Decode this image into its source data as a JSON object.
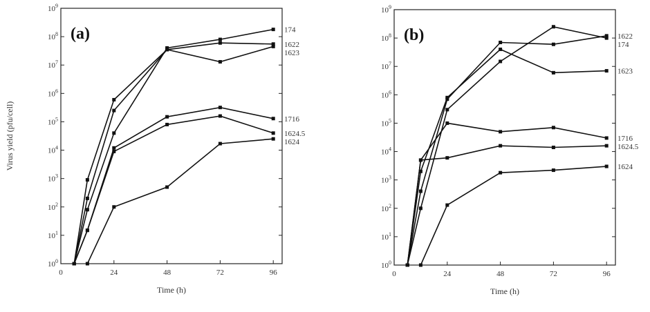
{
  "chart_data": [
    {
      "type": "line",
      "panel_label": "(a)",
      "xlabel": "Time (h)",
      "ylabel": "Virus yield (pfu/cell)",
      "x_ticks": [
        "0",
        "24",
        "48",
        "72",
        "96"
      ],
      "y_ticks": [
        "10^0",
        "10^1",
        "10^2",
        "10^3",
        "10^4",
        "10^5",
        "10^6",
        "10^7",
        "10^8",
        "10^9"
      ],
      "xlim": [
        0,
        100
      ],
      "ylim": [
        1,
        1000000000
      ],
      "y_scale": "log",
      "series": [
        {
          "name": "174",
          "x": [
            6,
            12,
            24,
            48,
            72,
            96
          ],
          "y": [
            1,
            80,
            40000,
            40000000,
            80000000,
            180000000
          ]
        },
        {
          "name": "1622",
          "x": [
            6,
            12,
            24,
            48,
            72,
            96
          ],
          "y": [
            1,
            200,
            250000,
            35000000,
            60000000,
            55000000
          ]
        },
        {
          "name": "1623",
          "x": [
            6,
            12,
            24,
            48,
            72,
            96
          ],
          "y": [
            1,
            900,
            600000,
            35000000,
            13000000,
            45000000
          ]
        },
        {
          "name": "1716",
          "x": [
            6,
            12,
            24,
            48,
            72,
            96
          ],
          "y": [
            1,
            15,
            12000,
            150000,
            320000,
            130000
          ]
        },
        {
          "name": "1624.5",
          "x": [
            6,
            12,
            24,
            48,
            72,
            96
          ],
          "y": [
            1,
            15,
            9000,
            80000,
            160000,
            40000
          ]
        },
        {
          "name": "1624",
          "x": [
            12,
            24,
            48,
            72,
            96
          ],
          "y": [
            1,
            100,
            500,
            17000,
            25000
          ]
        }
      ]
    },
    {
      "type": "line",
      "panel_label": "(b)",
      "xlabel": "Time (h)",
      "ylabel": "",
      "x_ticks": [
        "0",
        "24",
        "48",
        "72",
        "96"
      ],
      "y_ticks": [
        "10^0",
        "10^1",
        "10^2",
        "10^3",
        "10^4",
        "10^5",
        "10^6",
        "10^7",
        "10^8",
        "10^9"
      ],
      "xlim": [
        0,
        100
      ],
      "ylim": [
        1,
        1000000000
      ],
      "y_scale": "log",
      "series": [
        {
          "name": "174",
          "x": [
            6,
            12,
            24,
            48,
            72,
            96
          ],
          "y": [
            1,
            100,
            300000,
            15000000,
            250000000,
            100000000
          ]
        },
        {
          "name": "1622",
          "x": [
            6,
            12,
            24,
            48,
            72,
            96
          ],
          "y": [
            1,
            400,
            700000,
            70000000,
            60000000,
            120000000
          ]
        },
        {
          "name": "1623",
          "x": [
            6,
            12,
            24,
            48,
            72,
            96
          ],
          "y": [
            1,
            2000,
            800000,
            40000000,
            6000000,
            7000000
          ]
        },
        {
          "name": "1716",
          "x": [
            6,
            12,
            24,
            48,
            72,
            96
          ],
          "y": [
            1,
            5000,
            100000,
            50000,
            70000,
            30000
          ]
        },
        {
          "name": "1624.5",
          "x": [
            6,
            12,
            24,
            48,
            72,
            96
          ],
          "y": [
            1,
            5000,
            6000,
            16000,
            14000,
            16000
          ]
        },
        {
          "name": "1624",
          "x": [
            12,
            24,
            48,
            72,
            96
          ],
          "y": [
            1,
            130,
            1800,
            2200,
            3000
          ]
        }
      ]
    }
  ]
}
